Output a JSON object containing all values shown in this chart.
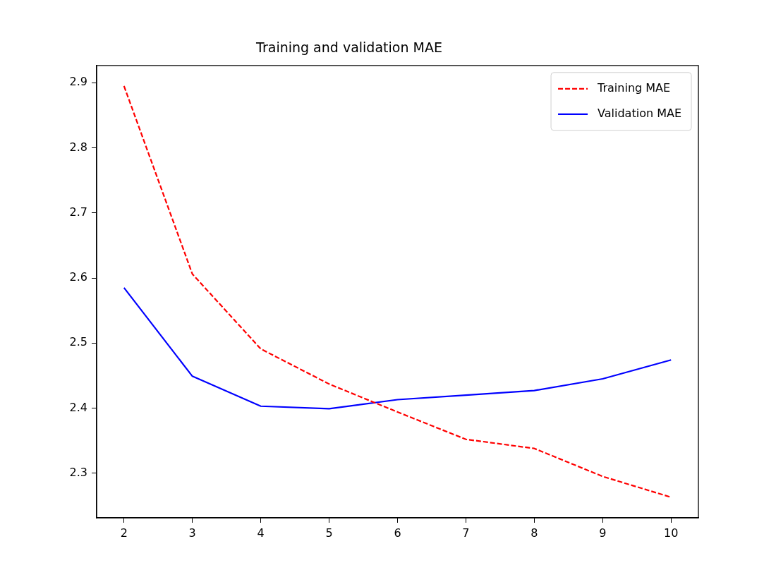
{
  "chart_data": {
    "type": "line",
    "title": "Training and validation MAE",
    "x": [
      2,
      3,
      4,
      5,
      6,
      7,
      8,
      9,
      10
    ],
    "series": [
      {
        "name": "Training MAE",
        "color": "#ff0000",
        "line_style": "dashed",
        "values": [
          2.895,
          2.606,
          2.491,
          2.437,
          2.394,
          2.352,
          2.338,
          2.295,
          2.263
        ]
      },
      {
        "name": "Validation MAE",
        "color": "#0000ff",
        "line_style": "solid",
        "values": [
          2.585,
          2.449,
          2.403,
          2.399,
          2.413,
          2.42,
          2.427,
          2.445,
          2.474
        ]
      }
    ],
    "xlim": [
      1.6,
      10.4
    ],
    "xticks": [
      2,
      3,
      4,
      5,
      6,
      7,
      8,
      9,
      10
    ],
    "ylim": [
      2.2314,
      2.9266
    ],
    "yticks": [
      2.3,
      2.4,
      2.5,
      2.6,
      2.7,
      2.8,
      2.9
    ],
    "grid": false,
    "legend": "top right",
    "marker": "none"
  }
}
